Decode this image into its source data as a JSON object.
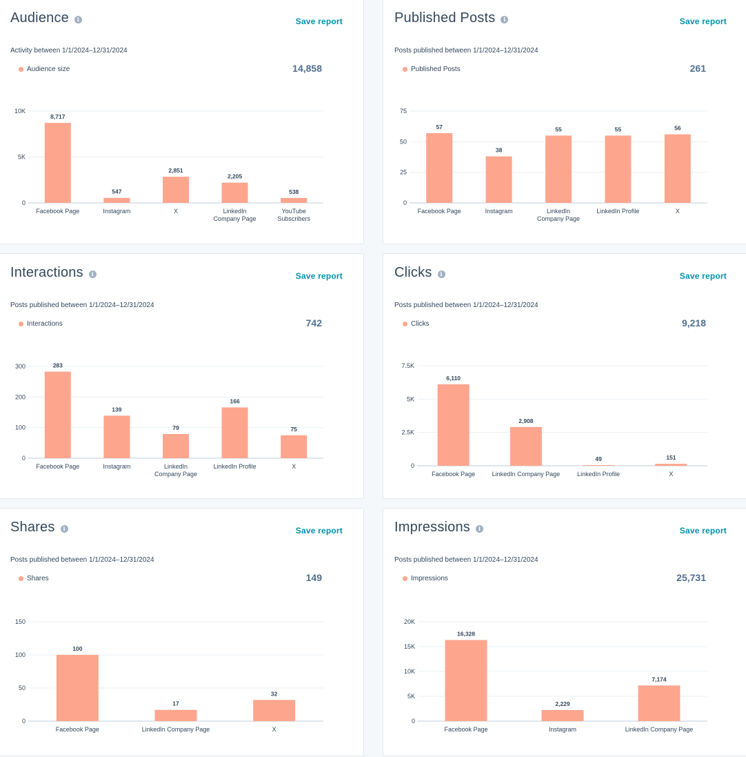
{
  "colors": {
    "bar": "#fea58e",
    "accent": "#0091ae",
    "grid": "#eaf0f6",
    "axis": "#cbd6e2"
  },
  "icons": {
    "info": "info-icon"
  },
  "cards": [
    {
      "title": "Audience",
      "save_label": "Save report",
      "subtitle": "Activity between 1/1/2024–12/31/2024",
      "legend": "Audience size",
      "total": "14,858",
      "chart_data": {
        "type": "bar",
        "categories": [
          [
            "Facebook Page"
          ],
          [
            "Instagram"
          ],
          [
            "X"
          ],
          [
            "LinkedIn",
            "Company Page"
          ],
          [
            "YouTube",
            "Subscribers"
          ]
        ],
        "values": [
          8717,
          547,
          2851,
          2205,
          538
        ],
        "value_labels": [
          "8,717",
          "547",
          "2,851",
          "2,205",
          "538"
        ],
        "ylim": [
          0,
          10000
        ],
        "yticks": [
          0,
          5000,
          10000
        ],
        "ytick_labels": [
          "0",
          "5K",
          "10K"
        ]
      }
    },
    {
      "title": "Published Posts",
      "save_label": "Save report",
      "subtitle": "Posts published between 1/1/2024–12/31/2024",
      "legend": "Published Posts",
      "total": "261",
      "chart_data": {
        "type": "bar",
        "categories": [
          [
            "Facebook Page"
          ],
          [
            "Instagram"
          ],
          [
            "LinkedIn",
            "Company Page"
          ],
          [
            "LinkedIn Profile"
          ],
          [
            "X"
          ]
        ],
        "values": [
          57,
          38,
          55,
          55,
          56
        ],
        "value_labels": [
          "57",
          "38",
          "55",
          "55",
          "56"
        ],
        "ylim": [
          0,
          75
        ],
        "yticks": [
          0,
          25,
          50,
          75
        ],
        "ytick_labels": [
          "0",
          "25",
          "50",
          "75"
        ]
      }
    },
    {
      "title": "Interactions",
      "save_label": "Save report",
      "subtitle": "Posts published between 1/1/2024–12/31/2024",
      "legend": "Interactions",
      "total": "742",
      "chart_data": {
        "type": "bar",
        "categories": [
          [
            "Facebook Page"
          ],
          [
            "Instagram"
          ],
          [
            "LinkedIn",
            "Company Page"
          ],
          [
            "LinkedIn Profile"
          ],
          [
            "X"
          ]
        ],
        "values": [
          283,
          139,
          79,
          166,
          75
        ],
        "value_labels": [
          "283",
          "139",
          "79",
          "166",
          "75"
        ],
        "ylim": [
          0,
          300
        ],
        "yticks": [
          0,
          100,
          200,
          300
        ],
        "ytick_labels": [
          "0",
          "100",
          "200",
          "300"
        ]
      }
    },
    {
      "title": "Clicks",
      "save_label": "Save report",
      "subtitle": "Posts published between 1/1/2024–12/31/2024",
      "legend": "Clicks",
      "total": "9,218",
      "chart_data": {
        "type": "bar",
        "categories": [
          [
            "Facebook Page"
          ],
          [
            "LinkedIn Company Page"
          ],
          [
            "LinkedIn Profile"
          ],
          [
            "X"
          ]
        ],
        "values": [
          6110,
          2908,
          49,
          151
        ],
        "value_labels": [
          "6,110",
          "2,908",
          "49",
          "151"
        ],
        "ylim": [
          0,
          7500
        ],
        "yticks": [
          0,
          2500,
          5000,
          7500
        ],
        "ytick_labels": [
          "0",
          "2.5K",
          "5K",
          "7.5K"
        ]
      }
    },
    {
      "title": "Shares",
      "save_label": "Save report",
      "subtitle": "Posts published between 1/1/2024–12/31/2024",
      "legend": "Shares",
      "total": "149",
      "chart_data": {
        "type": "bar",
        "categories": [
          [
            "Facebook Page"
          ],
          [
            "LinkedIn Company Page"
          ],
          [
            "X"
          ]
        ],
        "values": [
          100,
          17,
          32
        ],
        "value_labels": [
          "100",
          "17",
          "32"
        ],
        "ylim": [
          0,
          150
        ],
        "yticks": [
          0,
          50,
          100,
          150
        ],
        "ytick_labels": [
          "0",
          "50",
          "100",
          "150"
        ]
      }
    },
    {
      "title": "Impressions",
      "save_label": "Save report",
      "subtitle": "Posts published between 1/1/2024–12/31/2024",
      "legend": "Impressions",
      "total": "25,731",
      "chart_data": {
        "type": "bar",
        "categories": [
          [
            "Facebook Page"
          ],
          [
            "Instagram"
          ],
          [
            "LinkedIn Company Page"
          ]
        ],
        "values": [
          16328,
          2229,
          7174
        ],
        "value_labels": [
          "16,328",
          "2,229",
          "7,174"
        ],
        "ylim": [
          0,
          20000
        ],
        "yticks": [
          0,
          5000,
          10000,
          15000,
          20000
        ],
        "ytick_labels": [
          "0",
          "5K",
          "10K",
          "15K",
          "20K"
        ]
      }
    }
  ]
}
